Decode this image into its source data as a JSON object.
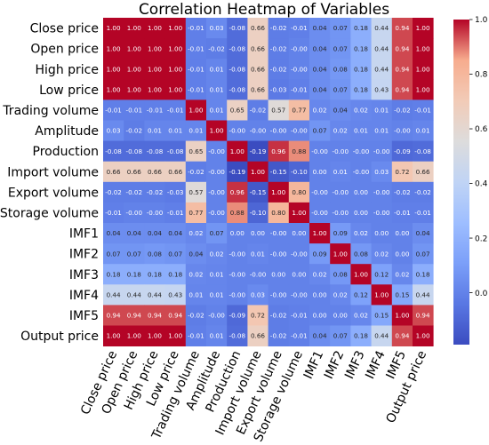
{
  "chart_data": {
    "type": "heatmap",
    "title": "Correlation Heatmap of Variables",
    "variables": [
      "Close price",
      "Open price",
      "High price",
      "Low price",
      "Trading volume",
      "Amplitude",
      "Production",
      "Import volume",
      "Export volume",
      "Storage volume",
      "IMF1",
      "IMF2",
      "IMF3",
      "IMF4",
      "IMF5",
      "Output price"
    ],
    "matrix": [
      [
        1.0,
        1.0,
        1.0,
        1.0,
        -0.01,
        0.03,
        -0.08,
        0.66,
        -0.02,
        -0.01,
        0.04,
        0.07,
        0.18,
        0.44,
        0.94,
        1.0
      ],
      [
        1.0,
        1.0,
        1.0,
        1.0,
        -0.01,
        -0.02,
        -0.08,
        0.66,
        -0.02,
        -0.0,
        0.04,
        0.07,
        0.18,
        0.44,
        0.94,
        1.0
      ],
      [
        1.0,
        1.0,
        1.0,
        1.0,
        -0.01,
        0.01,
        -0.08,
        0.66,
        -0.02,
        -0.0,
        0.04,
        0.08,
        0.18,
        0.44,
        0.94,
        1.0
      ],
      [
        1.0,
        1.0,
        1.0,
        1.0,
        -0.01,
        0.01,
        -0.08,
        0.66,
        -0.03,
        -0.01,
        0.04,
        0.07,
        0.18,
        0.43,
        0.94,
        1.0
      ],
      [
        -0.01,
        -0.01,
        -0.01,
        -0.01,
        1.0,
        0.01,
        0.65,
        -0.02,
        0.57,
        0.77,
        0.02,
        0.04,
        0.02,
        0.01,
        -0.02,
        -0.01
      ],
      [
        0.03,
        -0.02,
        0.01,
        0.01,
        0.01,
        1.0,
        -0.0,
        -0.0,
        -0.0,
        -0.0,
        0.07,
        0.02,
        0.01,
        0.01,
        -0.0,
        0.01
      ],
      [
        -0.08,
        -0.08,
        -0.08,
        -0.08,
        0.65,
        -0.0,
        1.0,
        -0.19,
        0.96,
        0.88,
        -0.0,
        -0.0,
        -0.0,
        -0.0,
        -0.09,
        -0.08
      ],
      [
        0.66,
        0.66,
        0.66,
        0.66,
        -0.02,
        -0.0,
        -0.19,
        1.0,
        -0.15,
        -0.1,
        0.0,
        0.01,
        -0.0,
        0.03,
        0.72,
        0.66
      ],
      [
        -0.02,
        -0.02,
        -0.02,
        -0.03,
        0.57,
        -0.0,
        0.96,
        -0.15,
        1.0,
        0.8,
        -0.0,
        -0.0,
        0.0,
        -0.0,
        -0.02,
        -0.02
      ],
      [
        -0.01,
        -0.0,
        -0.0,
        -0.01,
        0.77,
        -0.0,
        0.88,
        -0.1,
        0.8,
        1.0,
        -0.0,
        -0.0,
        0.0,
        -0.0,
        -0.01,
        -0.01
      ],
      [
        0.04,
        0.04,
        0.04,
        0.04,
        0.02,
        0.07,
        0.0,
        0.0,
        -0.0,
        0.0,
        1.0,
        0.09,
        0.02,
        0.0,
        0.0,
        0.04
      ],
      [
        0.07,
        0.07,
        0.08,
        0.07,
        0.04,
        0.02,
        -0.0,
        0.01,
        -0.0,
        -0.0,
        0.09,
        1.0,
        0.08,
        0.02,
        0.0,
        0.07
      ],
      [
        0.18,
        0.18,
        0.18,
        0.18,
        0.02,
        0.01,
        -0.0,
        -0.0,
        0.0,
        0.0,
        0.02,
        0.08,
        1.0,
        0.12,
        0.02,
        0.18
      ],
      [
        0.44,
        0.44,
        0.44,
        0.43,
        0.01,
        0.01,
        -0.0,
        0.03,
        -0.0,
        -0.0,
        0.0,
        0.02,
        0.12,
        1.0,
        0.15,
        0.44
      ],
      [
        0.94,
        0.94,
        0.94,
        0.94,
        -0.02,
        -0.0,
        -0.09,
        0.72,
        -0.02,
        -0.01,
        0.0,
        0.0,
        0.02,
        0.15,
        1.0,
        0.94
      ],
      [
        1.0,
        1.0,
        1.0,
        1.0,
        -0.01,
        0.01,
        -0.08,
        0.66,
        -0.02,
        -0.01,
        0.04,
        0.07,
        0.18,
        0.44,
        0.94,
        1.0
      ]
    ],
    "colorbar": {
      "colormap": "coolwarm",
      "range": [
        -0.19,
        1.0
      ],
      "ticks": [
        "0.0",
        "0.2",
        "0.4",
        "0.6",
        "0.8",
        "1.0"
      ],
      "tick_values": [
        0.0,
        0.2,
        0.4,
        0.6,
        0.8,
        1.0
      ]
    },
    "grid": false
  }
}
